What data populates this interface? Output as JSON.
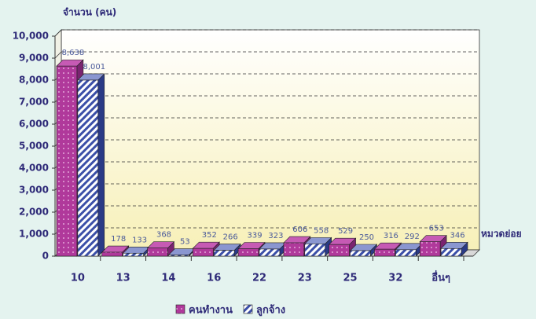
{
  "chart_data": {
    "type": "bar3d",
    "y_label": "จำนวน (คน)",
    "x_label": "หมวดย่อย",
    "categories": [
      "10",
      "13",
      "14",
      "16",
      "22",
      "23",
      "25",
      "32",
      "อื่นๆ"
    ],
    "series": [
      {
        "name": "คนทำงาน",
        "color": "#b0399b",
        "values": [
          8638,
          178,
          368,
          352,
          339,
          606,
          529,
          316,
          653
        ],
        "value_labels": [
          "8,638",
          "178",
          "368",
          "352",
          "339",
          "606",
          "529",
          "316",
          "653"
        ]
      },
      {
        "name": "ลูกจ้าง",
        "color": "#3b4fa8",
        "values": [
          8001,
          133,
          53,
          266,
          323,
          558,
          250,
          292,
          346
        ],
        "value_labels": [
          "8,001",
          "133",
          "53",
          "266",
          "323",
          "558",
          "250",
          "292",
          "346"
        ]
      }
    ],
    "ylim": [
      0,
      10000
    ],
    "yticks": [
      0,
      {
        "value": 1000,
        "label": "1,000"
      },
      {
        "value": 2000,
        "label": "2,000"
      },
      {
        "value": 3000,
        "label": "3,000"
      },
      {
        "value": 4000,
        "label": "4,000"
      },
      {
        "value": 5000,
        "label": "5,000"
      },
      {
        "value": 6000,
        "label": "6,000"
      },
      {
        "value": 7000,
        "label": "7,000"
      },
      {
        "value": 8000,
        "label": "8,000"
      },
      {
        "value": 9000,
        "label": "9,000"
      },
      {
        "value": 10000,
        "label": "10,000"
      }
    ],
    "grid": true
  }
}
